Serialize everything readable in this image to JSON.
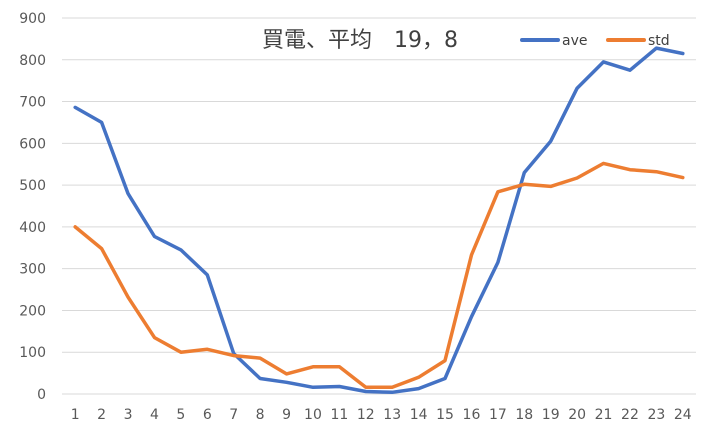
{
  "chart_data": {
    "type": "line",
    "title": "買電、平均　19，8",
    "xlabel": "",
    "ylabel": "",
    "x": [
      1,
      2,
      3,
      4,
      5,
      6,
      7,
      8,
      9,
      10,
      11,
      12,
      13,
      14,
      15,
      16,
      17,
      18,
      19,
      20,
      21,
      22,
      23,
      24
    ],
    "ylim": [
      0,
      900
    ],
    "yticks": [
      0,
      100,
      200,
      300,
      400,
      500,
      600,
      700,
      800,
      900
    ],
    "grid": true,
    "legend_position": "top-right",
    "series": [
      {
        "name": "ave",
        "color": "#4472C4",
        "values": [
          686,
          650,
          480,
          377,
          345,
          285,
          97,
          37,
          28,
          16,
          18,
          6,
          4,
          13,
          37,
          185,
          315,
          530,
          605,
          732,
          795,
          775,
          828,
          815
        ]
      },
      {
        "name": "std",
        "color": "#ED7D31",
        "values": [
          400,
          348,
          232,
          135,
          100,
          107,
          92,
          86,
          48,
          65,
          65,
          16,
          16,
          40,
          80,
          333,
          484,
          502,
          497,
          517,
          552,
          537,
          532,
          518
        ]
      }
    ]
  }
}
